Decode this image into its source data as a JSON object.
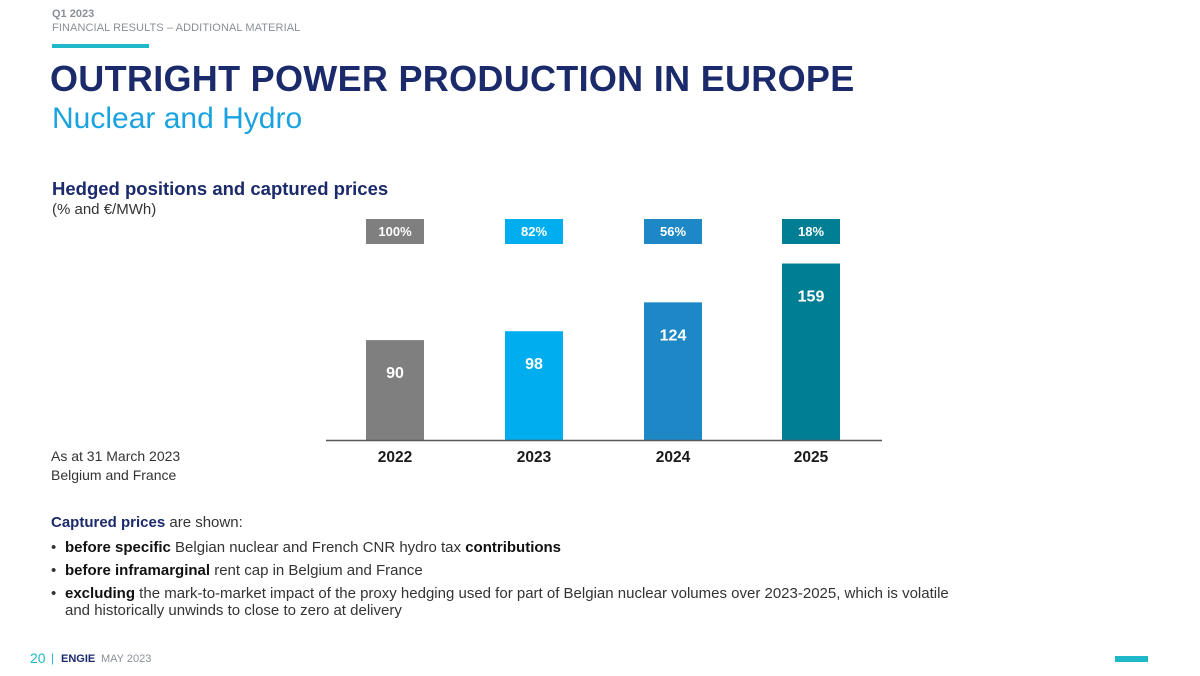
{
  "header": {
    "quarter": "Q1 2023",
    "section": "FINANCIAL RESULTS – ADDITIONAL MATERIAL",
    "title": "OUTRIGHT POWER PRODUCTION IN EUROPE",
    "subtitle": "Nuclear and Hydro"
  },
  "notes": {
    "as_at": "As at 31 March 2023",
    "scope": "Belgium and France"
  },
  "captured": {
    "bold": "Captured prices",
    "rest": " are shown:",
    "bullets": [
      {
        "b1": "before specific",
        "t1": " Belgian nuclear and French CNR hydro tax ",
        "b2": "contributions",
        "t2": ""
      },
      {
        "b1": "before inframarginal",
        "t1": " rent cap in Belgium and France",
        "b2": "",
        "t2": ""
      },
      {
        "b1": "excluding",
        "t1": " the mark-to-market impact of the proxy hedging used for part of Belgian nuclear volumes over 2023-2025, which is volatile and historically unwinds to close to zero at delivery",
        "b2": "",
        "t2": ""
      }
    ]
  },
  "footer": {
    "page": "20",
    "separator": "|",
    "brand": "ENGIE",
    "date": "MAY 2023"
  },
  "chart_data": {
    "type": "bar",
    "title": "Hedged positions and captured prices",
    "unit_label": "(% and €/MWh)",
    "categories": [
      "2022",
      "2023",
      "2024",
      "2025"
    ],
    "values": [
      90,
      98,
      124,
      159
    ],
    "hedged_labels": [
      "100%",
      "82%",
      "56%",
      "18%"
    ],
    "colors": [
      "#7f7f7f",
      "#00aeef",
      "#1e88c7",
      "#007e93"
    ],
    "ylim": [
      0,
      180
    ]
  }
}
